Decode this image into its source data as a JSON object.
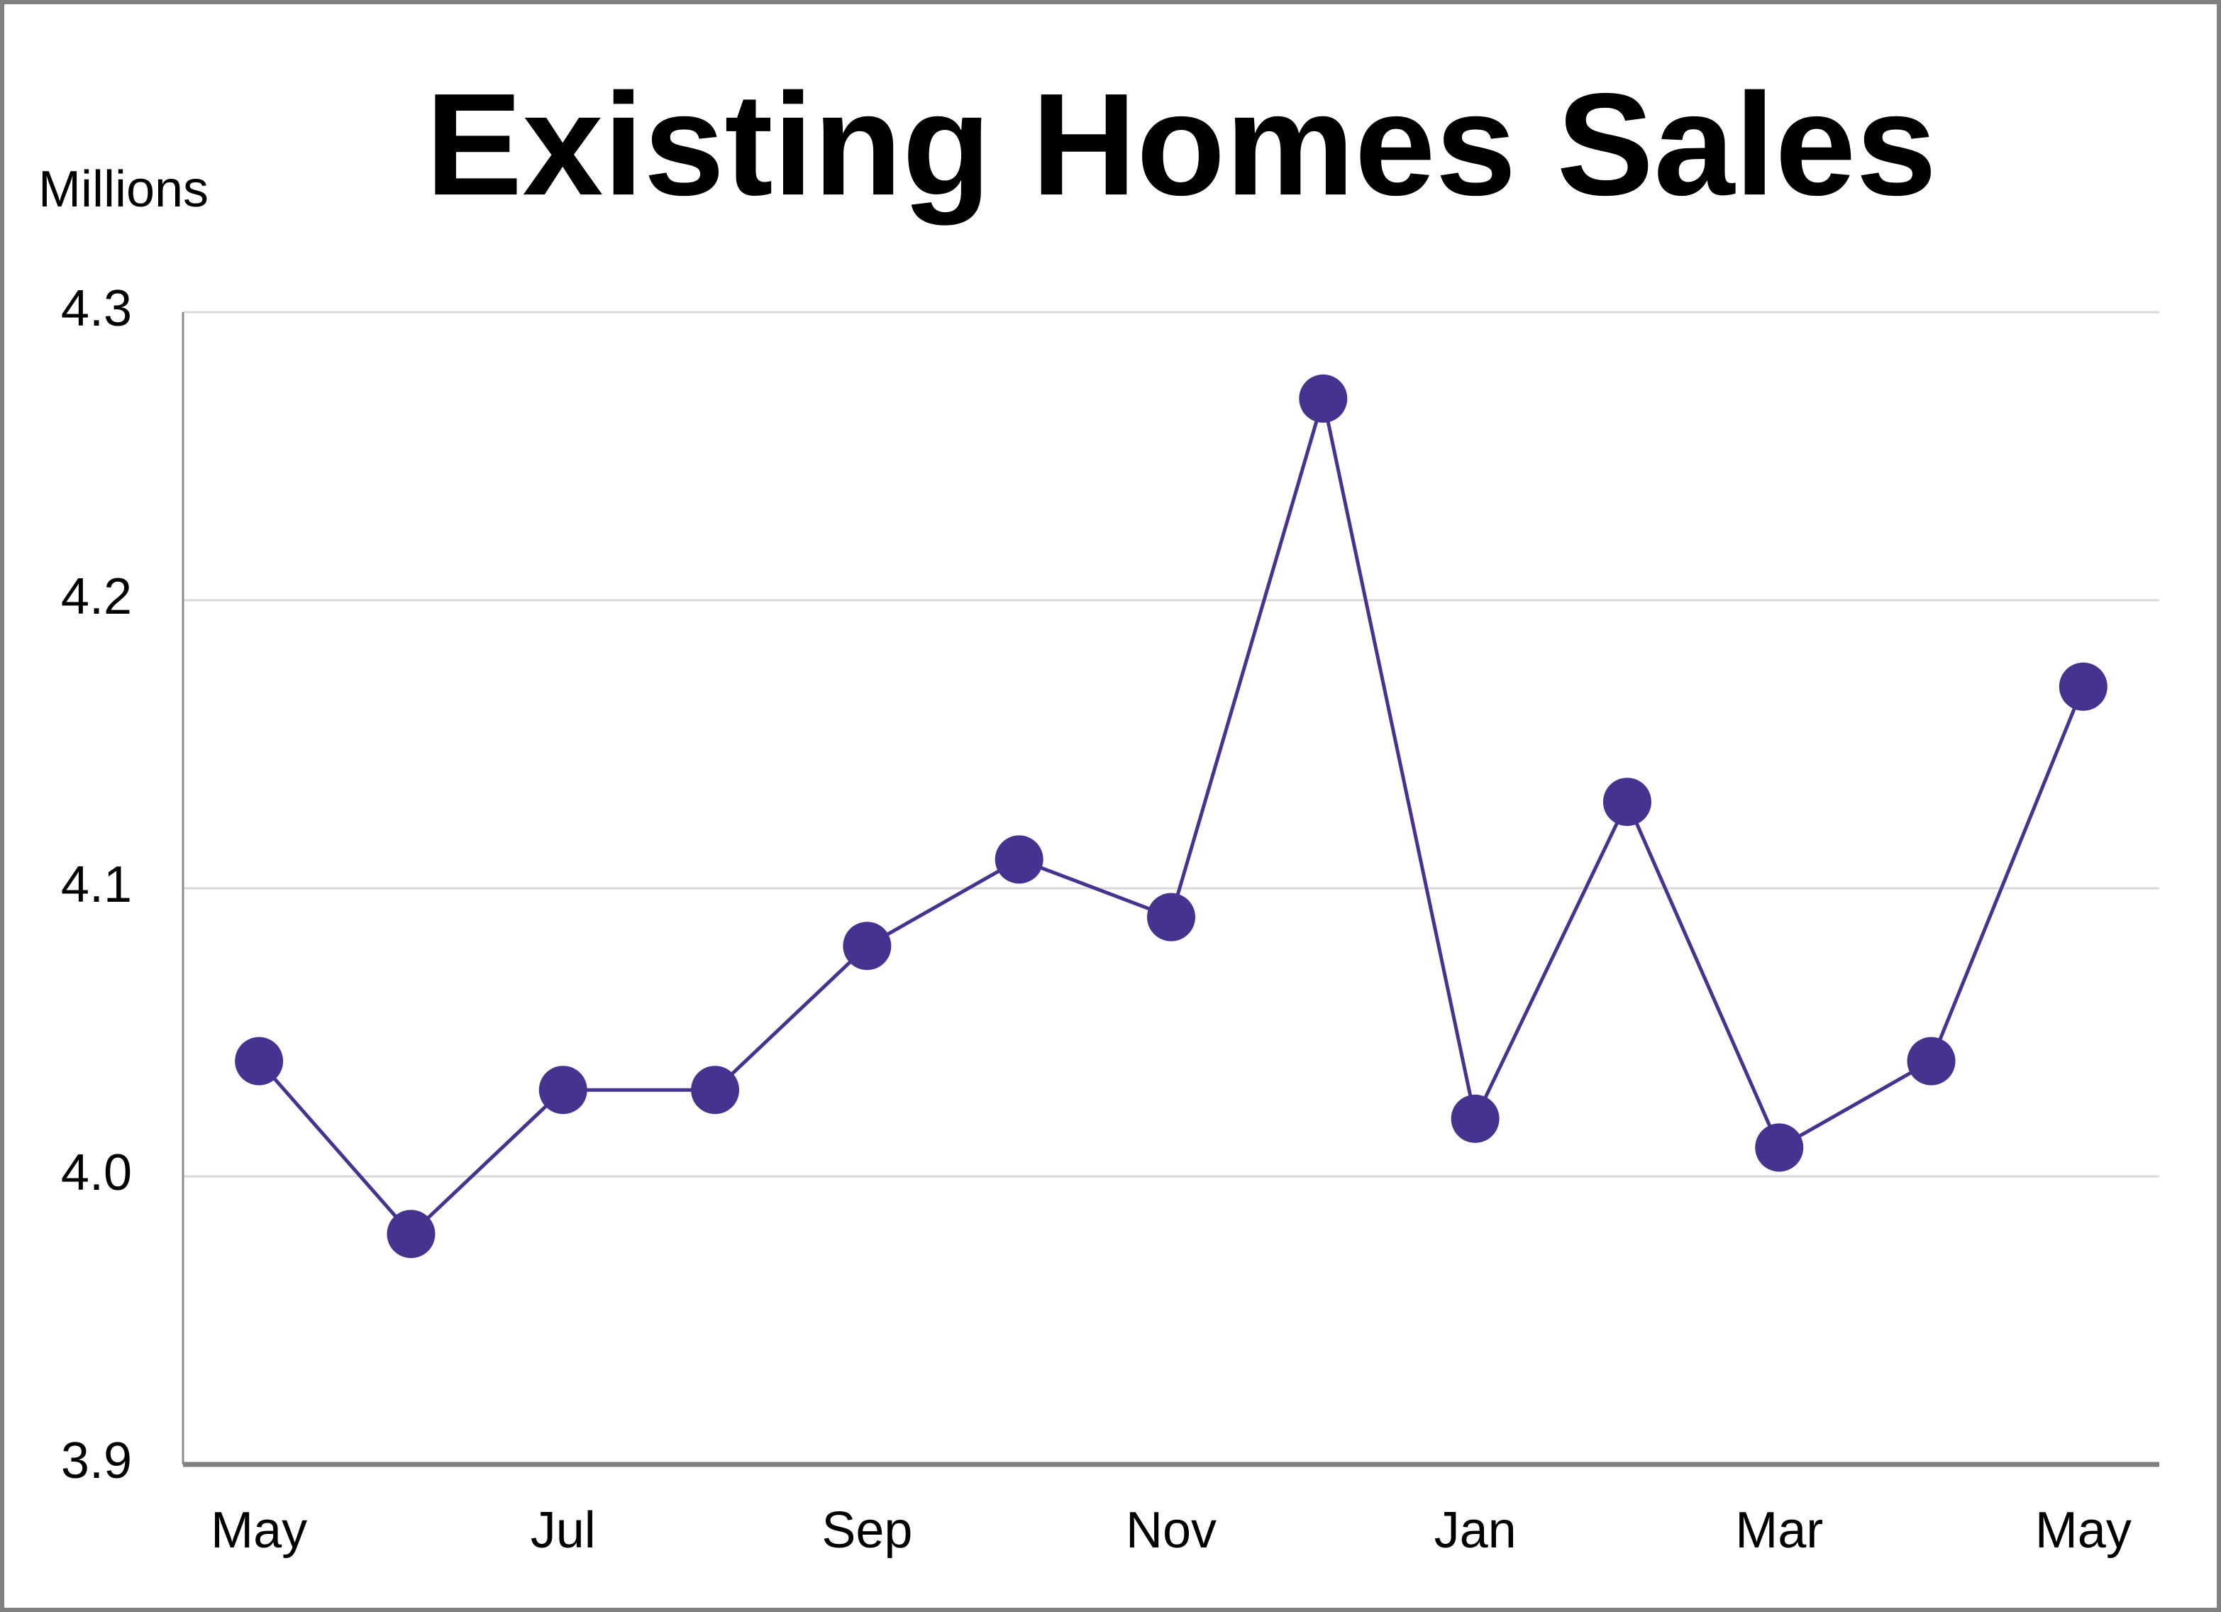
{
  "chart_data": {
    "type": "line",
    "title": "Existing Homes Sales",
    "y_label": "Millions",
    "categories": [
      "May",
      null,
      "Jul",
      null,
      "Sep",
      null,
      "Nov",
      null,
      "Jan",
      null,
      "Mar",
      null,
      "May"
    ],
    "values": [
      4.04,
      3.98,
      4.03,
      4.03,
      4.08,
      4.11,
      4.09,
      4.27,
      4.02,
      4.13,
      4.01,
      4.04,
      4.17
    ],
    "color": "#46338f",
    "ylim": [
      3.9,
      4.3
    ],
    "yticks": [
      3.9,
      {
        "value": 4,
        "label": "4.0"
      },
      4.1,
      4.2,
      4.3
    ],
    "grid": true
  }
}
